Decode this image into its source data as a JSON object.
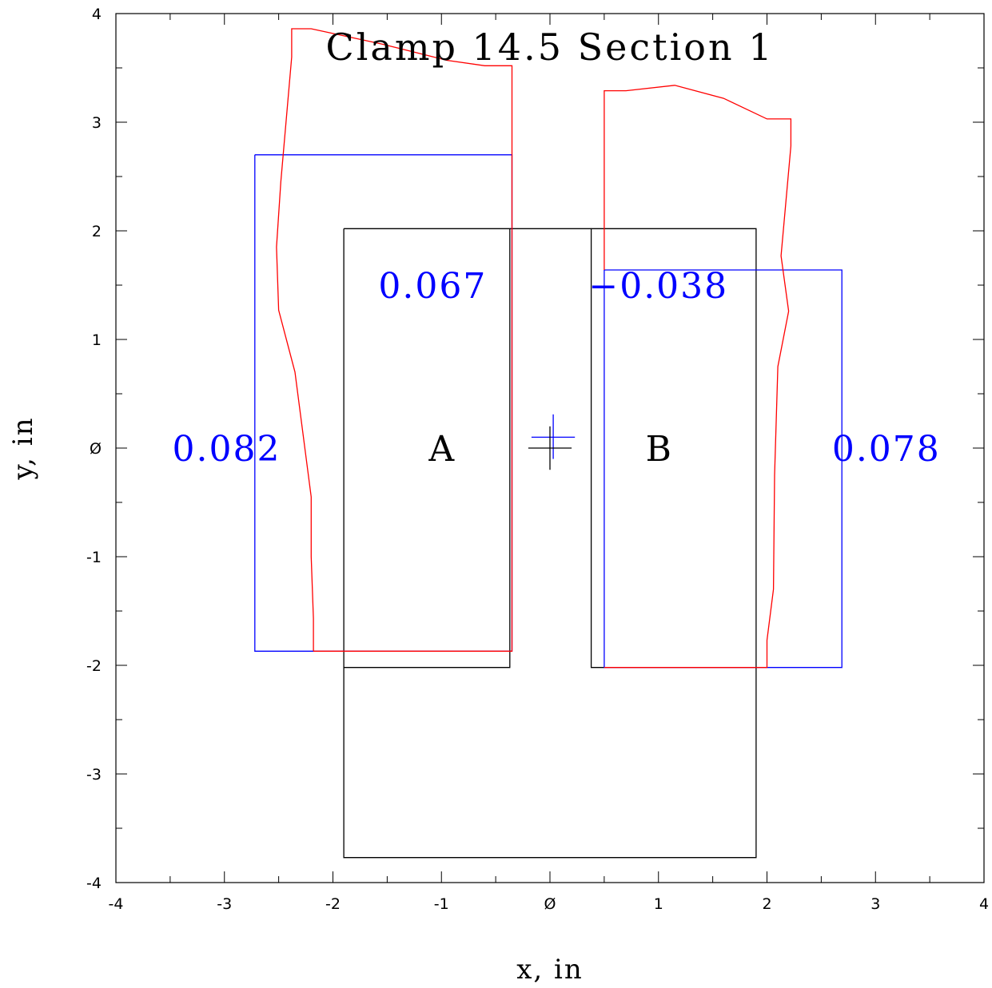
{
  "chart_data": {
    "type": "line",
    "title": "Clamp 14.5 Section 1",
    "xlabel": "x, in",
    "ylabel": "y, in",
    "xlim": [
      -4,
      4
    ],
    "ylim": [
      -4,
      4
    ],
    "x_ticks": [
      -4,
      -3,
      -2,
      -1,
      0,
      1,
      2,
      3,
      4
    ],
    "y_ticks": [
      -4,
      -3,
      -2,
      -1,
      0,
      1,
      2,
      3,
      4
    ],
    "x_tick_labels": [
      "-4",
      "-3",
      "-2",
      "-1",
      "Ø",
      "1",
      "2",
      "3",
      "4"
    ],
    "y_tick_labels": [
      "-4",
      "-3",
      "-2",
      "-1",
      "Ø",
      "1",
      "2",
      "3",
      "4"
    ],
    "grid": false,
    "colors": {
      "outline": "#000000",
      "fit": "#0000ff",
      "profile": "#ff0000"
    },
    "series": [
      {
        "color": "#000000",
        "points": [
          [
            -1.9,
            2.02
          ],
          [
            -1.9,
            -3.77
          ],
          [
            1.9,
            -3.77
          ],
          [
            1.9,
            2.02
          ],
          [
            0.38,
            2.02
          ],
          [
            0.38,
            -2.02
          ],
          [
            1.9,
            -2.02
          ]
        ]
      },
      {
        "color": "#000000",
        "points": [
          [
            -1.9,
            2.02
          ],
          [
            -0.37,
            2.02
          ],
          [
            -0.37,
            -2.02
          ],
          [
            -1.9,
            -2.02
          ]
        ]
      },
      {
        "color": "#000000",
        "points": [
          [
            -0.37,
            2.02
          ],
          [
            0.38,
            2.02
          ]
        ]
      },
      {
        "color": "#0000ff",
        "points": [
          [
            -2.72,
            2.7
          ],
          [
            -0.35,
            2.7
          ],
          [
            -0.35,
            -1.87
          ],
          [
            -2.72,
            -1.87
          ],
          [
            -2.72,
            2.7
          ]
        ]
      },
      {
        "color": "#0000ff",
        "points": [
          [
            0.5,
            1.64
          ],
          [
            2.69,
            1.64
          ],
          [
            2.69,
            -2.02
          ],
          [
            0.5,
            -2.02
          ],
          [
            0.5,
            1.64
          ]
        ]
      },
      {
        "color": "#ff0000",
        "points": [
          [
            -2.18,
            -1.87
          ],
          [
            -2.18,
            -1.57
          ],
          [
            -2.2,
            -1.0
          ],
          [
            -2.2,
            -0.45
          ],
          [
            -2.35,
            0.7
          ],
          [
            -2.5,
            1.27
          ],
          [
            -2.52,
            1.85
          ],
          [
            -2.48,
            2.45
          ],
          [
            -2.38,
            3.6
          ],
          [
            -2.38,
            3.86
          ],
          [
            -2.2,
            3.86
          ],
          [
            -1.55,
            3.72
          ],
          [
            -0.95,
            3.57
          ],
          [
            -0.6,
            3.52
          ],
          [
            -0.35,
            3.52
          ],
          [
            -0.35,
            -1.87
          ],
          [
            -2.18,
            -1.87
          ]
        ]
      },
      {
        "color": "#ff0000",
        "points": [
          [
            0.5,
            1.64
          ],
          [
            0.5,
            3.29
          ],
          [
            0.7,
            3.29
          ],
          [
            1.15,
            3.34
          ],
          [
            1.6,
            3.22
          ],
          [
            2.0,
            3.03
          ],
          [
            2.22,
            3.03
          ],
          [
            2.22,
            2.78
          ],
          [
            2.13,
            1.77
          ],
          [
            2.2,
            1.26
          ],
          [
            2.1,
            0.75
          ],
          [
            2.07,
            -0.25
          ],
          [
            2.06,
            -1.3
          ],
          [
            2.0,
            -1.77
          ],
          [
            2.0,
            -2.02
          ],
          [
            0.5,
            -2.02
          ]
        ]
      },
      {
        "color": "#0000ff",
        "points": [
          [
            -0.17,
            0.1
          ],
          [
            0.23,
            0.1
          ]
        ]
      },
      {
        "color": "#0000ff",
        "points": [
          [
            0.03,
            0.31
          ],
          [
            0.03,
            -0.1
          ]
        ]
      },
      {
        "color": "#000000",
        "points": [
          [
            -0.2,
            0.0
          ],
          [
            0.2,
            0.0
          ]
        ]
      },
      {
        "color": "#000000",
        "points": [
          [
            0.0,
            0.2
          ],
          [
            0.0,
            -0.2
          ]
        ]
      }
    ],
    "annotations": [
      {
        "text": "A",
        "x": -1.0,
        "y": 0.0,
        "color": "#000000"
      },
      {
        "text": "B",
        "x": 1.0,
        "y": 0.0,
        "color": "#000000"
      },
      {
        "text": "0.067",
        "x": -1.08,
        "y": 1.5,
        "color": "#0000ff"
      },
      {
        "text": "−0.038",
        "x": 1.0,
        "y": 1.5,
        "color": "#0000ff"
      },
      {
        "text": "0.082",
        "x": -2.98,
        "y": 0.0,
        "color": "#0000ff"
      },
      {
        "text": "0.078",
        "x": 3.1,
        "y": 0.0,
        "color": "#0000ff"
      }
    ]
  }
}
